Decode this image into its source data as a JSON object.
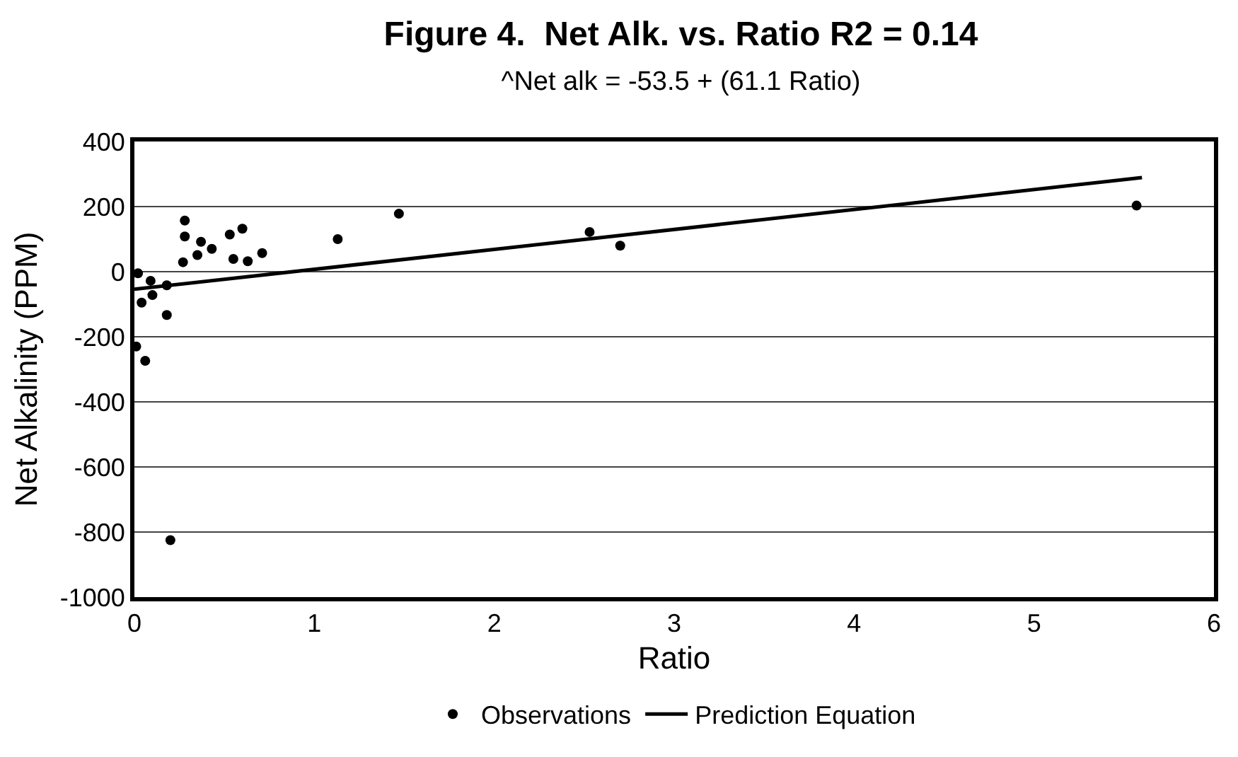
{
  "chart_data": {
    "type": "scatter",
    "title": "Figure 4.  Net Alk. vs. Ratio R2 = 0.14",
    "subtitle": "^Net alk = -53.5 + (61.1 Ratio)",
    "xlabel": "Ratio",
    "ylabel": "Net Alkalinity (PPM)",
    "xlim": [
      0,
      6
    ],
    "xticks": [
      0,
      1,
      2,
      3,
      4,
      5,
      6
    ],
    "ylim": [
      -1000,
      400
    ],
    "yticks": [
      -1000,
      -800,
      -600,
      -400,
      -200,
      0,
      200,
      400
    ],
    "grid": "y",
    "legend": "bottom",
    "marker": "circle",
    "series": [
      {
        "name": "Observations",
        "color": "#000000",
        "x": [
          0.01,
          0.02,
          0.04,
          0.06,
          0.09,
          0.1,
          0.18,
          0.18,
          0.2,
          0.27,
          0.28,
          0.28,
          0.35,
          0.37,
          0.43,
          0.53,
          0.55,
          0.6,
          0.63,
          0.71,
          1.13,
          1.47,
          2.53,
          2.7,
          5.57
        ],
        "values": [
          -230,
          -5,
          -95,
          -274,
          -28,
          -72,
          -42,
          -133,
          -825,
          29,
          157,
          108,
          51,
          92,
          70,
          114,
          39,
          132,
          32,
          57,
          100,
          178,
          122,
          80,
          203
        ]
      },
      {
        "name": "Prediction Equation",
        "type": "line",
        "color": "#000000",
        "line_style": "solid",
        "marker": "none",
        "x": [
          0,
          5.6
        ],
        "values": [
          -54,
          289
        ]
      }
    ]
  }
}
